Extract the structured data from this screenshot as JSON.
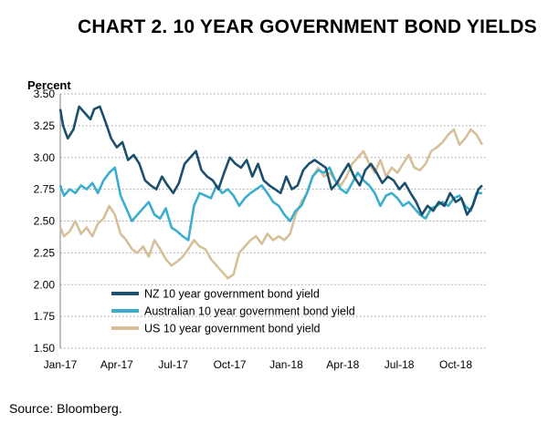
{
  "chart_data": {
    "type": "line",
    "title": "CHART 2. 10 YEAR GOVERNMENT BOND YIELDS",
    "ylabel": "Percent",
    "source": "Source: Bloomberg.",
    "ylim": [
      1.5,
      3.5
    ],
    "yticks": [
      "1.50",
      "1.75",
      "2.00",
      "2.25",
      "2.50",
      "2.75",
      "3.00",
      "3.25",
      "3.50"
    ],
    "xticks": [
      "Jan-17",
      "Apr-17",
      "Jul-17",
      "Oct-17",
      "Jan-18",
      "Apr-18",
      "Jul-18",
      "Oct-18"
    ],
    "xlim": [
      0,
      22.6
    ],
    "grid": "horizontal dotted",
    "legend_position": "bottom-left inside plot",
    "series": [
      {
        "name": "NZ 10 year government bond yield",
        "color": "#1b4f6b",
        "x": [
          0,
          0.15,
          0.4,
          0.7,
          1.0,
          1.3,
          1.6,
          1.8,
          2.1,
          2.4,
          2.7,
          3.0,
          3.3,
          3.6,
          3.9,
          4.2,
          4.5,
          4.8,
          5.1,
          5.4,
          5.7,
          6.0,
          6.3,
          6.6,
          6.9,
          7.2,
          7.5,
          7.8,
          8.1,
          8.4,
          8.7,
          9.0,
          9.3,
          9.6,
          9.9,
          10.2,
          10.5,
          10.8,
          11.1,
          11.4,
          11.7,
          12.0,
          12.3,
          12.6,
          12.9,
          13.2,
          13.5,
          13.8,
          14.1,
          14.4,
          14.7,
          15.0,
          15.3,
          15.6,
          15.9,
          16.2,
          16.5,
          16.8,
          17.1,
          17.4,
          17.7,
          18.0,
          18.3,
          18.6,
          18.9,
          19.2,
          19.5,
          19.8,
          20.1,
          20.4,
          20.7,
          21.0,
          21.3,
          21.6,
          21.9,
          22.2,
          22.4
        ],
        "values": [
          3.38,
          3.25,
          3.15,
          3.22,
          3.4,
          3.35,
          3.3,
          3.38,
          3.4,
          3.28,
          3.15,
          3.08,
          3.12,
          2.98,
          3.02,
          2.95,
          2.82,
          2.78,
          2.75,
          2.85,
          2.78,
          2.72,
          2.8,
          2.95,
          3.0,
          3.05,
          2.9,
          2.85,
          2.82,
          2.75,
          2.88,
          3.0,
          2.95,
          2.92,
          2.98,
          2.85,
          2.95,
          2.82,
          2.78,
          2.75,
          2.72,
          2.85,
          2.75,
          2.78,
          2.9,
          2.95,
          2.98,
          2.95,
          2.92,
          2.75,
          2.8,
          2.88,
          2.95,
          2.85,
          2.78,
          2.9,
          2.95,
          2.88,
          2.8,
          2.85,
          2.82,
          2.75,
          2.8,
          2.72,
          2.65,
          2.55,
          2.62,
          2.58,
          2.65,
          2.62,
          2.72,
          2.65,
          2.68,
          2.55,
          2.62,
          2.75,
          2.78
        ]
      },
      {
        "name": "Australian 10 year government bond yield",
        "color": "#3aaecc",
        "x": [
          0,
          0.2,
          0.5,
          0.8,
          1.1,
          1.4,
          1.7,
          2.0,
          2.3,
          2.6,
          2.9,
          3.2,
          3.5,
          3.8,
          4.1,
          4.4,
          4.7,
          5.0,
          5.3,
          5.6,
          5.9,
          6.2,
          6.5,
          6.8,
          7.1,
          7.4,
          7.7,
          8.0,
          8.3,
          8.6,
          8.9,
          9.2,
          9.5,
          9.8,
          10.1,
          10.4,
          10.7,
          11.0,
          11.3,
          11.6,
          11.9,
          12.2,
          12.5,
          12.8,
          13.1,
          13.4,
          13.7,
          14.0,
          14.3,
          14.6,
          14.9,
          15.2,
          15.5,
          15.8,
          16.1,
          16.4,
          16.7,
          17.0,
          17.3,
          17.6,
          17.9,
          18.2,
          18.5,
          18.8,
          19.1,
          19.4,
          19.7,
          20.0,
          20.3,
          20.6,
          20.9,
          21.2,
          21.5,
          21.8,
          22.1,
          22.4
        ],
        "values": [
          2.78,
          2.7,
          2.75,
          2.72,
          2.78,
          2.75,
          2.8,
          2.72,
          2.82,
          2.88,
          2.92,
          2.7,
          2.6,
          2.5,
          2.55,
          2.6,
          2.65,
          2.55,
          2.52,
          2.6,
          2.45,
          2.42,
          2.38,
          2.35,
          2.62,
          2.72,
          2.7,
          2.68,
          2.78,
          2.72,
          2.75,
          2.7,
          2.62,
          2.68,
          2.72,
          2.75,
          2.78,
          2.72,
          2.65,
          2.62,
          2.55,
          2.5,
          2.58,
          2.62,
          2.72,
          2.85,
          2.9,
          2.88,
          2.92,
          2.82,
          2.75,
          2.72,
          2.8,
          2.88,
          2.82,
          2.78,
          2.72,
          2.62,
          2.7,
          2.72,
          2.68,
          2.62,
          2.65,
          2.6,
          2.55,
          2.52,
          2.6,
          2.62,
          2.65,
          2.62,
          2.68,
          2.7,
          2.62,
          2.58,
          2.72,
          2.72
        ]
      },
      {
        "name": "US 10 year government bond yield",
        "color": "#d6c09a",
        "x": [
          0,
          0.2,
          0.5,
          0.8,
          1.1,
          1.4,
          1.7,
          2.0,
          2.3,
          2.6,
          2.9,
          3.2,
          3.5,
          3.8,
          4.1,
          4.4,
          4.7,
          5.0,
          5.3,
          5.6,
          5.9,
          6.2,
          6.5,
          6.8,
          7.1,
          7.4,
          7.7,
          8.0,
          8.3,
          8.6,
          8.9,
          9.2,
          9.5,
          9.8,
          10.1,
          10.4,
          10.7,
          11.0,
          11.3,
          11.6,
          11.9,
          12.2,
          12.5,
          12.8,
          13.1,
          13.4,
          13.7,
          14.0,
          14.3,
          14.6,
          14.9,
          15.2,
          15.5,
          15.8,
          16.1,
          16.4,
          16.7,
          17.0,
          17.3,
          17.6,
          17.9,
          18.2,
          18.5,
          18.8,
          19.1,
          19.4,
          19.7,
          20.0,
          20.3,
          20.6,
          20.9,
          21.2,
          21.5,
          21.8,
          22.1,
          22.4
        ],
        "values": [
          2.45,
          2.38,
          2.42,
          2.5,
          2.4,
          2.45,
          2.38,
          2.48,
          2.52,
          2.62,
          2.55,
          2.4,
          2.35,
          2.28,
          2.25,
          2.3,
          2.22,
          2.35,
          2.28,
          2.2,
          2.15,
          2.18,
          2.22,
          2.28,
          2.35,
          2.3,
          2.28,
          2.2,
          2.15,
          2.1,
          2.05,
          2.08,
          2.25,
          2.3,
          2.35,
          2.38,
          2.32,
          2.4,
          2.35,
          2.38,
          2.35,
          2.4,
          2.55,
          2.65,
          2.72,
          2.85,
          2.92,
          2.85,
          2.88,
          2.82,
          2.78,
          2.85,
          2.95,
          3.0,
          3.05,
          2.95,
          2.88,
          2.98,
          2.85,
          2.92,
          2.88,
          2.95,
          3.02,
          2.92,
          2.9,
          2.95,
          3.05,
          3.08,
          3.12,
          3.18,
          3.22,
          3.1,
          3.15,
          3.22,
          3.18,
          3.1
        ]
      }
    ]
  }
}
